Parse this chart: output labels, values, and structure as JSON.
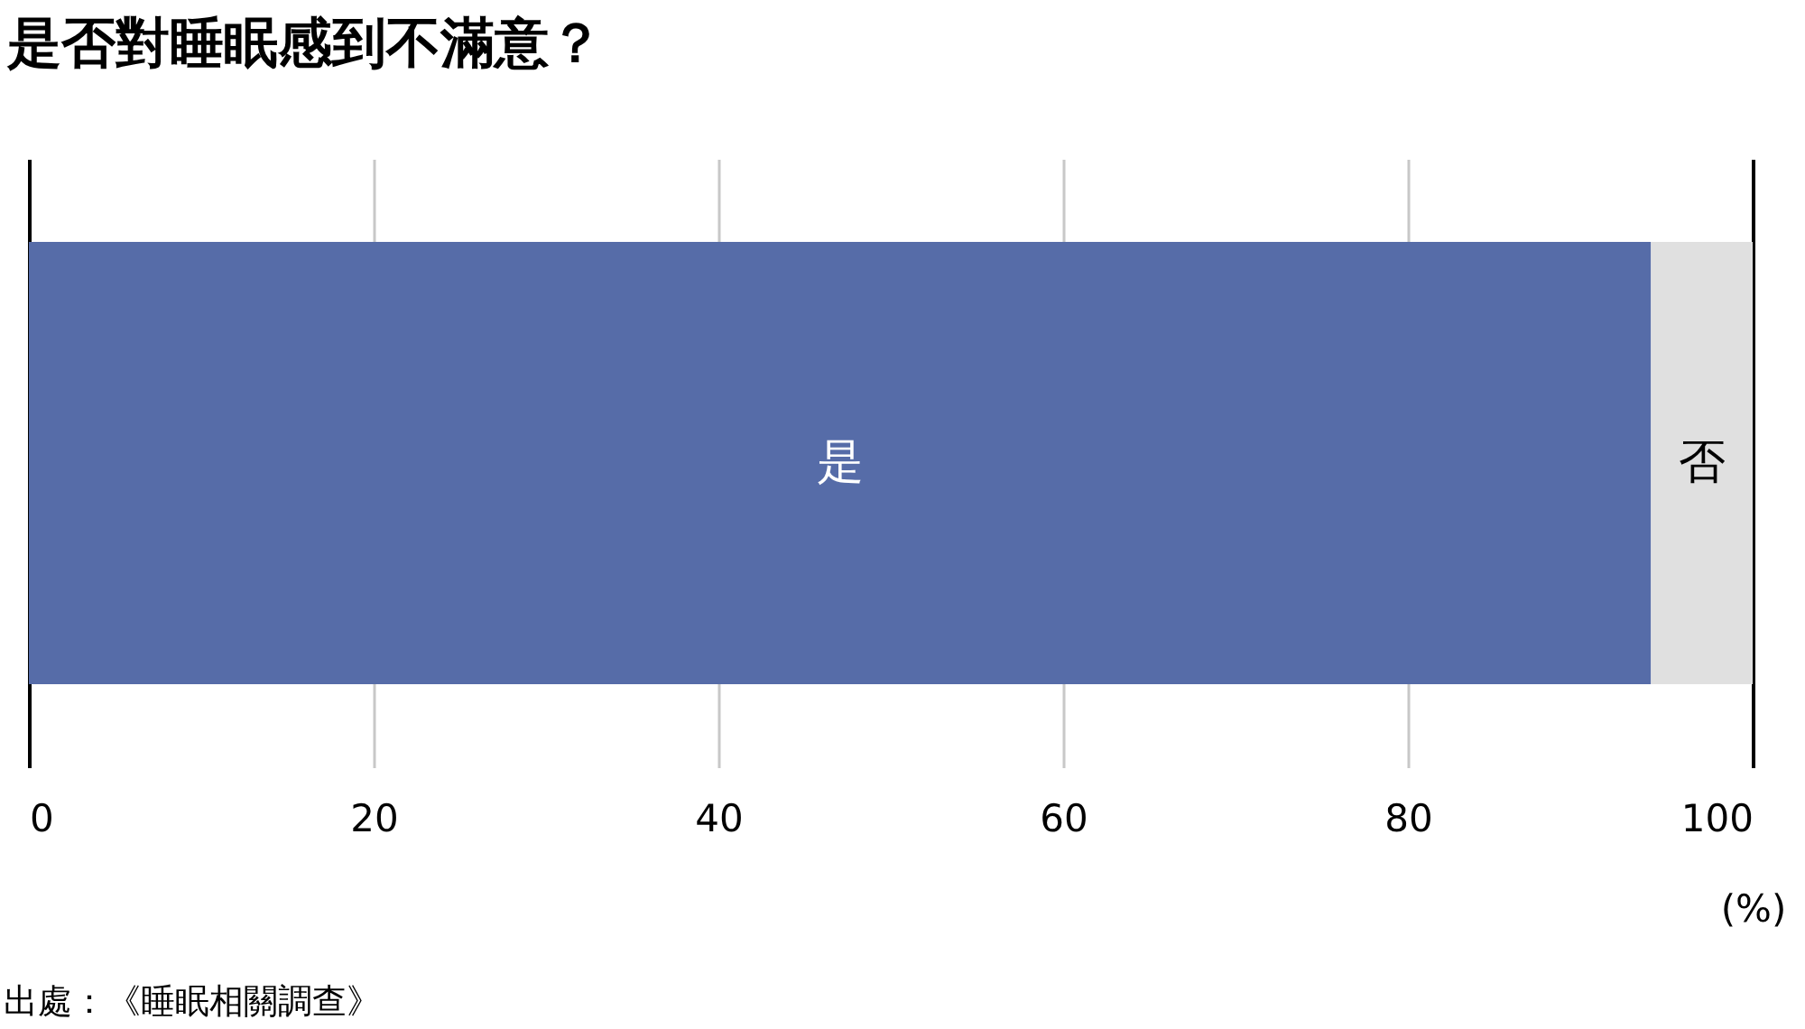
{
  "chart_data": {
    "type": "bar",
    "orientation": "horizontal",
    "stacked": true,
    "title": "是否對睡眠感到不滿意？",
    "xlabel": "(%)",
    "categories": [
      null
    ],
    "series": [
      {
        "name": "是",
        "color": "#566ca8",
        "values": [
          94.1
        ]
      },
      {
        "name": "否",
        "color": "#e0e0e0",
        "values": [
          5.9
        ]
      }
    ],
    "xlim": [
      0,
      100
    ],
    "xticks": [
      0,
      20,
      40,
      60,
      80,
      100
    ],
    "grid": "x",
    "tick_labels": "x",
    "annotations": [
      "出處：《睡眠相關調查》"
    ]
  }
}
